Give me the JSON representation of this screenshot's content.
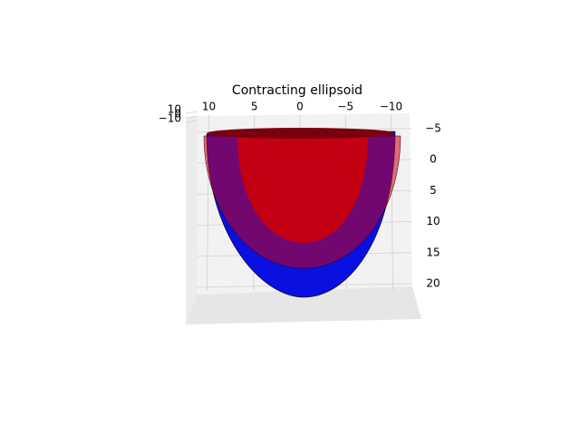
{
  "chart_data": {
    "type": "surface3d",
    "title": "Contracting ellipsoid",
    "xticks": [
      {
        "value": 10,
        "label": "10"
      },
      {
        "value": 5,
        "label": "5"
      },
      {
        "value": 0,
        "label": "0"
      },
      {
        "value": -5,
        "label": "−5"
      },
      {
        "value": -10,
        "label": "−10"
      }
    ],
    "yticks": [
      {
        "value": -5,
        "label": "−5"
      },
      {
        "value": 0,
        "label": "0"
      },
      {
        "value": 5,
        "label": "5"
      },
      {
        "value": 10,
        "label": "10"
      },
      {
        "value": 15,
        "label": "15"
      },
      {
        "value": 20,
        "label": "20"
      }
    ],
    "zticks": [
      {
        "value": 10,
        "label": "10"
      },
      {
        "value": 0,
        "label": "0"
      },
      {
        "value": -10,
        "label": "−10"
      }
    ],
    "grid": true
  }
}
